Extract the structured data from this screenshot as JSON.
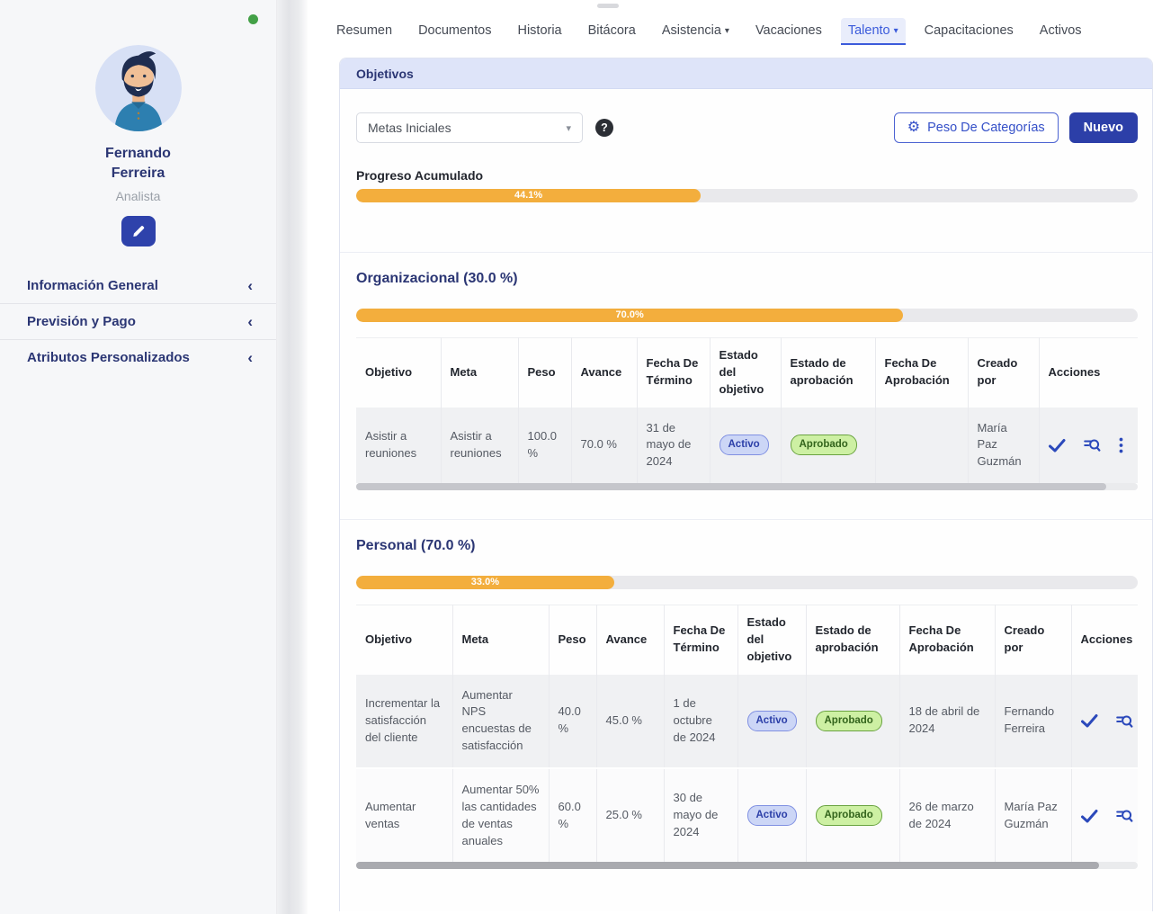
{
  "colors": {
    "accent": "#3b5bdb",
    "primary_button": "#2c3fa8",
    "progress_fill": "#f3ae3d",
    "active_badge_text": "#2c3fa8",
    "approved_badge_text": "#33641c",
    "status_dot": "#43a047"
  },
  "icons": {
    "gear": "⚙",
    "help": "?",
    "caret_down": "▾",
    "chevron_left": "‹"
  },
  "sidebar": {
    "name_line1": "Fernando",
    "name_line2": "Ferreira",
    "role": "Analista",
    "menu": [
      {
        "label": "Información General"
      },
      {
        "label": "Previsión y Pago"
      },
      {
        "label": "Atributos Personalizados"
      }
    ]
  },
  "tabs": [
    {
      "label": "Resumen"
    },
    {
      "label": "Documentos"
    },
    {
      "label": "Historia"
    },
    {
      "label": "Bitácora"
    },
    {
      "label": "Asistencia",
      "has_caret": true
    },
    {
      "label": "Vacaciones"
    },
    {
      "label": "Talento",
      "has_caret": true,
      "active": true
    },
    {
      "label": "Capacitaciones"
    },
    {
      "label": "Activos"
    }
  ],
  "panel": {
    "title": "Objetivos",
    "goal_filter_value": "Metas Iniciales",
    "weights_button_label": "Peso De Categorías",
    "new_button_label": "Nuevo",
    "overall_progress_label": "Progreso Acumulado",
    "overall_progress": {
      "percent": 44.1,
      "label": "44.1%"
    }
  },
  "table_headers": [
    "Objetivo",
    "Meta",
    "Peso",
    "Avance",
    "Fecha De Término",
    "Estado del objetivo",
    "Estado de aprobación",
    "Fecha De Aprobación",
    "Creado por",
    "Acciones"
  ],
  "sections": [
    {
      "heading": "Organizacional (30.0 %)",
      "progress": {
        "percent": 70.0,
        "label": "70.0%"
      },
      "rows": [
        {
          "objetivo": "Asistir a reuniones",
          "meta": "Asistir a reuniones",
          "peso": "100.0 %",
          "avance": "70.0 %",
          "fecha_termino": "31 de mayo de 2024",
          "estado_objetivo": "Activo",
          "estado_aprobacion": "Aprobado",
          "fecha_aprobacion": "",
          "creado_por": "María Paz Guzmán"
        }
      ]
    },
    {
      "heading": "Personal (70.0 %)",
      "progress": {
        "percent": 33.0,
        "label": "33.0%"
      },
      "rows": [
        {
          "objetivo": "Incrementar la satisfacción del cliente",
          "meta": "Aumentar NPS encuestas de satisfacción",
          "peso": "40.0 %",
          "avance": "45.0 %",
          "fecha_termino": "1 de octubre de 2024",
          "estado_objetivo": "Activo",
          "estado_aprobacion": "Aprobado",
          "fecha_aprobacion": "18 de abril de 2024",
          "creado_por": "Fernando Ferreira"
        },
        {
          "objetivo": "Aumentar ventas",
          "meta": "Aumentar 50% las cantidades de ventas anuales",
          "peso": "60.0 %",
          "avance": "25.0 %",
          "fecha_termino": "30 de mayo de 2024",
          "estado_objetivo": "Activo",
          "estado_aprobacion": "Aprobado",
          "fecha_aprobacion": "26 de marzo de 2024",
          "creado_por": "María Paz Guzmán"
        }
      ]
    }
  ]
}
